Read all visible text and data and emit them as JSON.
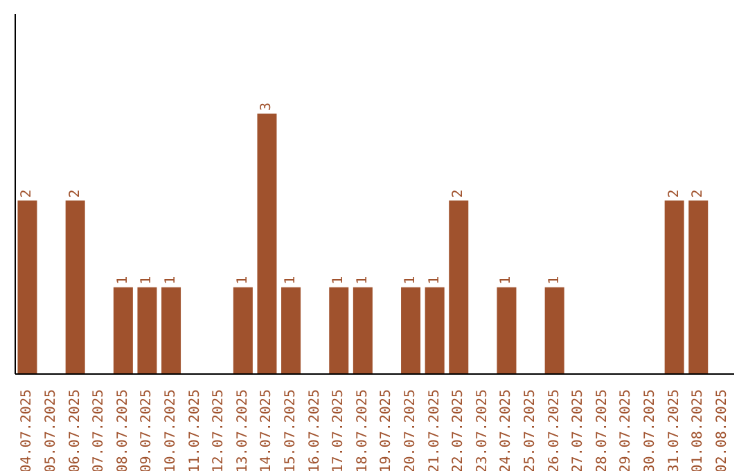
{
  "chart_data": {
    "type": "bar",
    "categories": [
      "04.07.2025",
      "05.07.2025",
      "06.07.2025",
      "07.07.2025",
      "08.07.2025",
      "09.07.2025",
      "10.07.2025",
      "11.07.2025",
      "12.07.2025",
      "13.07.2025",
      "14.07.2025",
      "15.07.2025",
      "16.07.2025",
      "17.07.2025",
      "18.07.2025",
      "19.07.2025",
      "20.07.2025",
      "21.07.2025",
      "22.07.2025",
      "23.07.2025",
      "24.07.2025",
      "25.07.2025",
      "26.07.2025",
      "27.07.2025",
      "28.07.2025",
      "29.07.2025",
      "30.07.2025",
      "31.07.2025",
      "01.08.2025",
      "02.08.2025"
    ],
    "values": [
      2,
      0,
      2,
      0,
      1,
      1,
      1,
      0,
      0,
      1,
      3,
      1,
      0,
      1,
      1,
      0,
      1,
      1,
      2,
      0,
      1,
      0,
      1,
      0,
      0,
      0,
      0,
      2,
      2,
      0
    ],
    "value_labels": [
      "2",
      null,
      "2",
      null,
      "1",
      "1",
      "1",
      null,
      null,
      "1",
      "3",
      "1",
      null,
      "1",
      "1",
      null,
      "1",
      "1",
      "2",
      null,
      "1",
      null,
      "1",
      null,
      null,
      null,
      null,
      "2",
      "2",
      null
    ],
    "color": "#a0522d",
    "ylim": [
      0,
      4.15
    ],
    "tick_labels": "x",
    "grid": false,
    "legend": false
  }
}
